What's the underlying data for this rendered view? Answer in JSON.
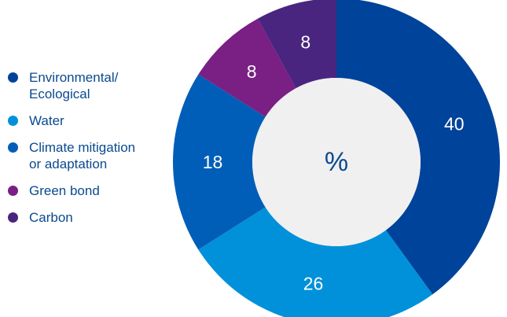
{
  "chart_data": {
    "type": "pie",
    "variant": "donut",
    "center_label": "%",
    "slices": [
      {
        "label": "Environmental/\nEcological",
        "value": 40,
        "color": "#00439a"
      },
      {
        "label": "Water",
        "value": 26,
        "color": "#0091da"
      },
      {
        "label": "Climate mitigation\nor adaptation",
        "value": 18,
        "color": "#005eb8"
      },
      {
        "label": "Green bond",
        "value": 8,
        "color": "#7a1f84"
      },
      {
        "label": "Carbon",
        "value": 8,
        "color": "#4a2580"
      }
    ],
    "legend_position": "left"
  },
  "colors": {
    "center": "#f0f0f0",
    "legend_text": "#0a4a8f",
    "data_label": "#ffffff",
    "center_label": "#0a4a8f"
  }
}
